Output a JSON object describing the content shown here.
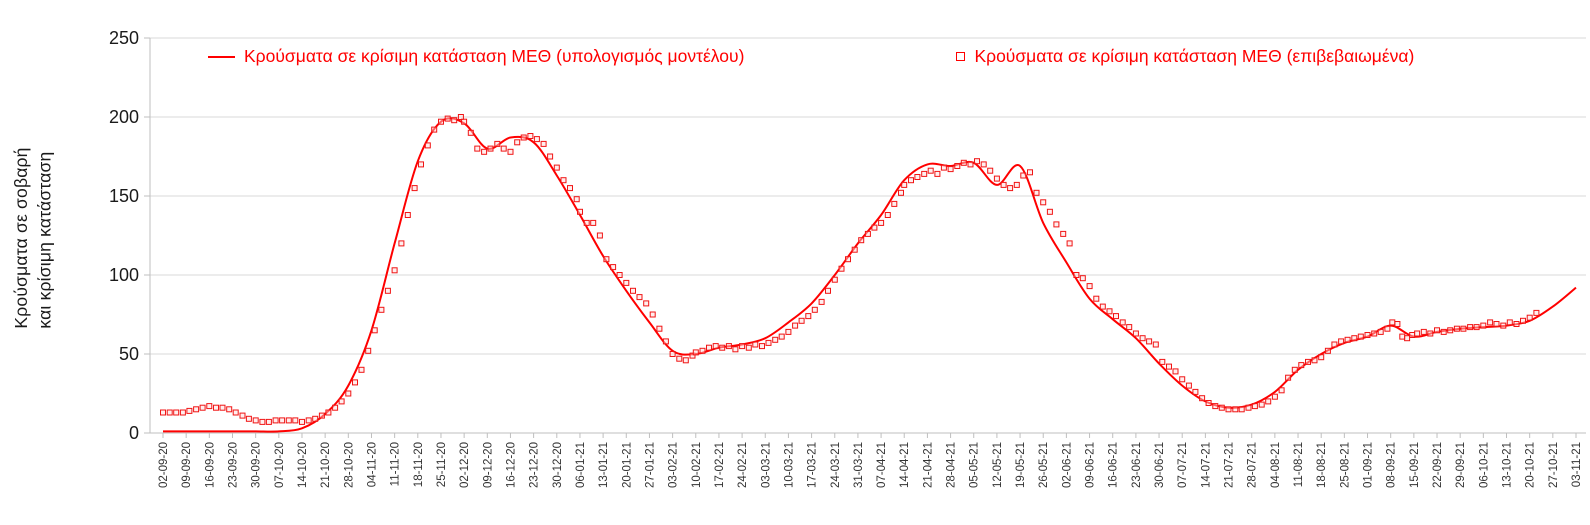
{
  "chart": {
    "ylabel_line1": "Κρούσματα σε σοβαρή",
    "ylabel_line2": "και κρίσιμη κατάσταση",
    "legend": [
      {
        "label": "Κρούσματα σε κρίσιμη κατάσταση ΜΕΘ (υπολογισμός μοντέλου)",
        "marker": "line"
      },
      {
        "label": "Κρούσματα σε κρίσιμη κατάσταση ΜΕΘ (επιβεβαιωμένα)",
        "marker": "square"
      }
    ],
    "colors": {
      "line": "#FF0000",
      "marker_stroke": "#F01414",
      "marker_fill": "#FFD9D9",
      "legend_text": "#FF0000",
      "grid": "#D9D9D9",
      "axis": "#BFBFBF",
      "text": "#1A1A1A",
      "tick_text": "#333333"
    }
  },
  "chart_data": {
    "type": "line",
    "title": "",
    "xlabel": "",
    "ylabel": "Κρούσματα σε σοβαρή και κρίσιμη κατάσταση",
    "ylim": [
      0,
      250
    ],
    "yticks": [
      0,
      50,
      100,
      150,
      200,
      250
    ],
    "grid": "horizontal",
    "legend_position": "top",
    "categories": [
      "02-09-20",
      "09-09-20",
      "16-09-20",
      "23-09-20",
      "30-09-20",
      "07-10-20",
      "14-10-20",
      "21-10-20",
      "28-10-20",
      "04-11-20",
      "11-11-20",
      "18-11-20",
      "25-11-20",
      "02-12-20",
      "09-12-20",
      "16-12-20",
      "23-12-20",
      "30-12-20",
      "06-01-21",
      "13-01-21",
      "20-01-21",
      "27-01-21",
      "03-02-21",
      "10-02-21",
      "17-02-21",
      "24-02-21",
      "03-03-21",
      "10-03-21",
      "17-03-21",
      "24-03-21",
      "31-03-21",
      "07-04-21",
      "14-04-21",
      "21-04-21",
      "28-04-21",
      "05-05-21",
      "12-05-21",
      "19-05-21",
      "26-05-21",
      "02-06-21",
      "09-06-21",
      "16-06-21",
      "23-06-21",
      "30-06-21",
      "07-07-21",
      "14-07-21",
      "21-07-21",
      "28-07-21",
      "04-08-21",
      "11-08-21",
      "18-08-21",
      "25-08-21",
      "01-09-21",
      "08-09-21",
      "15-09-21",
      "22-09-21",
      "29-09-21",
      "06-10-21",
      "13-10-21",
      "20-10-21",
      "27-10-21",
      "03-11-21"
    ],
    "series": [
      {
        "name": "Κρούσματα σε κρίσιμη κατάσταση ΜΕΘ (υπολογισμός μοντέλου)",
        "type": "line",
        "values": [
          1,
          1,
          1,
          1,
          1,
          1,
          3,
          12,
          30,
          65,
          120,
          172,
          197,
          196,
          180,
          187,
          184,
          163,
          138,
          112,
          90,
          70,
          52,
          50,
          54,
          56,
          60,
          70,
          82,
          100,
          120,
          138,
          160,
          170,
          169,
          171,
          157,
          169,
          133,
          108,
          85,
          72,
          60,
          44,
          30,
          20,
          16,
          18,
          26,
          40,
          50,
          57,
          61,
          68,
          61,
          64,
          66,
          67,
          68,
          71,
          80,
          92
        ]
      },
      {
        "name": "Κρούσματα σε κρίσιμη κατάσταση ΜΕΘ (επιβεβαιωμένα)",
        "type": "scatter",
        "points": [
          [
            0,
            13
          ],
          [
            0.29,
            13
          ],
          [
            0.57,
            13
          ],
          [
            0.86,
            13
          ],
          [
            1.14,
            14
          ],
          [
            1.43,
            15
          ],
          [
            1.71,
            16
          ],
          [
            2,
            17
          ],
          [
            2.29,
            16
          ],
          [
            2.57,
            16
          ],
          [
            2.86,
            15
          ],
          [
            3.14,
            13
          ],
          [
            3.43,
            11
          ],
          [
            3.71,
            9
          ],
          [
            4,
            8
          ],
          [
            4.29,
            7
          ],
          [
            4.57,
            7
          ],
          [
            4.86,
            8
          ],
          [
            5.14,
            8
          ],
          [
            5.43,
            8
          ],
          [
            5.71,
            8
          ],
          [
            6,
            7
          ],
          [
            6.29,
            8
          ],
          [
            6.57,
            9
          ],
          [
            6.86,
            11
          ],
          [
            7.14,
            13
          ],
          [
            7.43,
            16
          ],
          [
            7.71,
            20
          ],
          [
            8,
            25
          ],
          [
            8.29,
            32
          ],
          [
            8.57,
            40
          ],
          [
            8.86,
            52
          ],
          [
            9.14,
            65
          ],
          [
            9.43,
            78
          ],
          [
            9.71,
            90
          ],
          [
            10,
            103
          ],
          [
            10.29,
            120
          ],
          [
            10.57,
            138
          ],
          [
            10.86,
            155
          ],
          [
            11.14,
            170
          ],
          [
            11.43,
            182
          ],
          [
            11.71,
            192
          ],
          [
            12,
            197
          ],
          [
            12.29,
            199
          ],
          [
            12.57,
            198
          ],
          [
            12.86,
            200
          ],
          [
            13,
            197
          ],
          [
            13.29,
            190
          ],
          [
            13.57,
            180
          ],
          [
            13.86,
            178
          ],
          [
            14.14,
            180
          ],
          [
            14.43,
            183
          ],
          [
            14.71,
            180
          ],
          [
            15,
            178
          ],
          [
            15.29,
            184
          ],
          [
            15.57,
            187
          ],
          [
            15.86,
            188
          ],
          [
            16.14,
            186
          ],
          [
            16.43,
            183
          ],
          [
            16.71,
            175
          ],
          [
            17,
            168
          ],
          [
            17.29,
            160
          ],
          [
            17.57,
            155
          ],
          [
            17.86,
            148
          ],
          [
            18,
            140
          ],
          [
            18.29,
            133
          ],
          [
            18.57,
            133
          ],
          [
            18.86,
            125
          ],
          [
            19.14,
            110
          ],
          [
            19.43,
            105
          ],
          [
            19.71,
            100
          ],
          [
            20,
            95
          ],
          [
            20.29,
            90
          ],
          [
            20.57,
            86
          ],
          [
            20.86,
            82
          ],
          [
            21.14,
            75
          ],
          [
            21.43,
            66
          ],
          [
            21.71,
            58
          ],
          [
            22,
            50
          ],
          [
            22.29,
            47
          ],
          [
            22.57,
            46
          ],
          [
            22.86,
            49
          ],
          [
            23,
            51
          ],
          [
            23.29,
            52
          ],
          [
            23.57,
            54
          ],
          [
            23.86,
            55
          ],
          [
            24.14,
            54
          ],
          [
            24.43,
            55
          ],
          [
            24.71,
            53
          ],
          [
            25,
            55
          ],
          [
            25.29,
            54
          ],
          [
            25.57,
            56
          ],
          [
            25.86,
            55
          ],
          [
            26.14,
            57
          ],
          [
            26.43,
            59
          ],
          [
            26.71,
            61
          ],
          [
            27,
            64
          ],
          [
            27.29,
            68
          ],
          [
            27.57,
            71
          ],
          [
            27.86,
            74
          ],
          [
            28.14,
            78
          ],
          [
            28.43,
            83
          ],
          [
            28.71,
            90
          ],
          [
            29,
            97
          ],
          [
            29.29,
            104
          ],
          [
            29.57,
            110
          ],
          [
            29.86,
            116
          ],
          [
            30.14,
            122
          ],
          [
            30.43,
            126
          ],
          [
            30.71,
            130
          ],
          [
            31,
            133
          ],
          [
            31.29,
            138
          ],
          [
            31.57,
            145
          ],
          [
            31.86,
            152
          ],
          [
            32,
            157
          ],
          [
            32.29,
            160
          ],
          [
            32.57,
            162
          ],
          [
            32.86,
            164
          ],
          [
            33.14,
            166
          ],
          [
            33.43,
            164
          ],
          [
            33.71,
            168
          ],
          [
            34,
            167
          ],
          [
            34.29,
            169
          ],
          [
            34.57,
            171
          ],
          [
            34.86,
            170
          ],
          [
            35.14,
            172
          ],
          [
            35.43,
            170
          ],
          [
            35.71,
            166
          ],
          [
            36,
            161
          ],
          [
            36.29,
            157
          ],
          [
            36.57,
            155
          ],
          [
            36.86,
            157
          ],
          [
            37.14,
            163
          ],
          [
            37.43,
            165
          ],
          [
            37.71,
            152
          ],
          [
            38,
            146
          ],
          [
            38.29,
            140
          ],
          [
            38.57,
            132
          ],
          [
            38.86,
            126
          ],
          [
            39.14,
            120
          ],
          [
            39.43,
            100
          ],
          [
            39.71,
            98
          ],
          [
            40,
            93
          ],
          [
            40.29,
            85
          ],
          [
            40.57,
            80
          ],
          [
            40.86,
            77
          ],
          [
            41.14,
            74
          ],
          [
            41.43,
            70
          ],
          [
            41.71,
            67
          ],
          [
            42,
            63
          ],
          [
            42.29,
            60
          ],
          [
            42.57,
            58
          ],
          [
            42.86,
            56
          ],
          [
            43.14,
            45
          ],
          [
            43.43,
            42
          ],
          [
            43.71,
            39
          ],
          [
            44,
            34
          ],
          [
            44.29,
            30
          ],
          [
            44.57,
            26
          ],
          [
            44.86,
            22
          ],
          [
            45.14,
            19
          ],
          [
            45.43,
            17
          ],
          [
            45.71,
            16
          ],
          [
            46,
            15
          ],
          [
            46.29,
            15
          ],
          [
            46.57,
            15
          ],
          [
            46.86,
            16
          ],
          [
            47.14,
            17
          ],
          [
            47.43,
            18
          ],
          [
            47.71,
            20
          ],
          [
            48,
            23
          ],
          [
            48.29,
            27
          ],
          [
            48.57,
            35
          ],
          [
            48.86,
            40
          ],
          [
            49.14,
            43
          ],
          [
            49.43,
            45
          ],
          [
            49.71,
            46
          ],
          [
            50,
            48
          ],
          [
            50.29,
            52
          ],
          [
            50.57,
            56
          ],
          [
            50.86,
            58
          ],
          [
            51.14,
            59
          ],
          [
            51.43,
            60
          ],
          [
            51.71,
            61
          ],
          [
            52,
            62
          ],
          [
            52.29,
            63
          ],
          [
            52.57,
            64
          ],
          [
            52.86,
            66
          ],
          [
            53.07,
            70
          ],
          [
            53.29,
            69
          ],
          [
            53.5,
            61
          ],
          [
            53.71,
            60
          ],
          [
            53.93,
            62
          ],
          [
            54.14,
            63
          ],
          [
            54.43,
            64
          ],
          [
            54.71,
            63
          ],
          [
            55,
            65
          ],
          [
            55.29,
            64
          ],
          [
            55.57,
            65
          ],
          [
            55.86,
            66
          ],
          [
            56.14,
            66
          ],
          [
            56.43,
            67
          ],
          [
            56.71,
            67
          ],
          [
            57,
            68
          ],
          [
            57.29,
            70
          ],
          [
            57.57,
            69
          ],
          [
            57.86,
            68
          ],
          [
            58.14,
            70
          ],
          [
            58.43,
            69
          ],
          [
            58.71,
            71
          ],
          [
            59,
            73
          ],
          [
            59.29,
            76
          ]
        ]
      }
    ]
  }
}
